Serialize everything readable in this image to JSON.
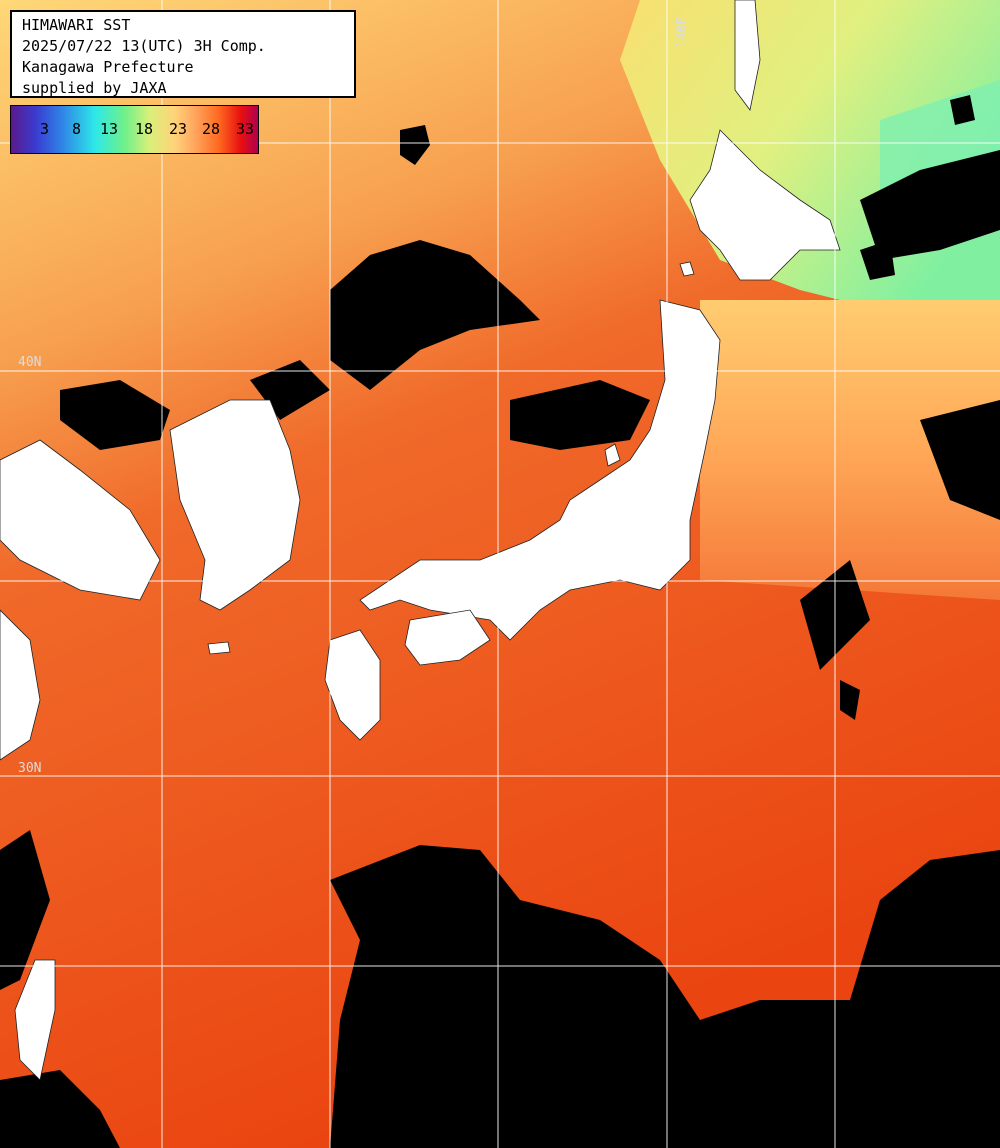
{
  "title": {
    "line1": "HIMAWARI SST",
    "line2": "2025/07/22 13(UTC) 3H Comp.",
    "line3": "Kanagawa Prefecture",
    "line4": "supplied by JAXA"
  },
  "legend": {
    "ticks": [
      "3",
      "8",
      "13",
      "18",
      "23",
      "28",
      "33"
    ],
    "colors": {
      "purple": "#5a1a8a",
      "blue": "#2f7fe6",
      "cyan": "#2ee8e8",
      "green": "#6ff08a",
      "yellow": "#d8f07a",
      "orange": "#ffa860",
      "red": "#e81010",
      "magenta": "#b00050"
    }
  },
  "grid_labels": {
    "lon_140": "140E",
    "lat_40": "40N",
    "lat_30": "30N"
  },
  "colors": {
    "sea_warm": "#ee4a14",
    "sea_mid": "#f47a3a",
    "sea_cool": "#ffb060",
    "sea_cold": "#e8e86a",
    "cloud": "#000000",
    "land": "#ffffff",
    "grid": "#ffffff"
  }
}
